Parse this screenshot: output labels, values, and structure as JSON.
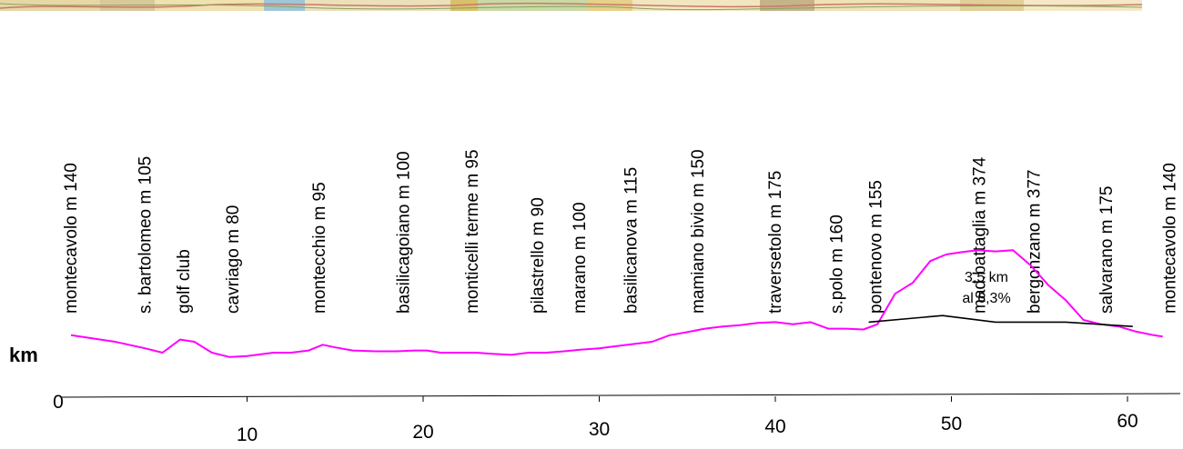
{
  "chart_data": {
    "type": "line",
    "ylabel": "km",
    "xlim": [
      -0.5,
      64
    ],
    "ylim": [
      0,
      400
    ],
    "x_ticks": [
      10,
      20,
      30,
      40,
      50,
      60
    ],
    "y_tick_labels": [
      "0"
    ],
    "colors": {
      "profile": "#ff00ff",
      "segment": "#000000"
    },
    "series": [
      {
        "color": "#ff00ff",
        "x": [
          0,
          2.5,
          4.2,
          5.2,
          6.2,
          7.0,
          8.0,
          9.0,
          10.0,
          11.5,
          12.5,
          13.5,
          14.3,
          15.0,
          16.0,
          17.3,
          18.5,
          19.5,
          20.2,
          21.0,
          22.0,
          23.0,
          24.0,
          25.0,
          26.0,
          27.0,
          28.0,
          29.0,
          30.0,
          31.0,
          32.0,
          33.0,
          34.0,
          35.0,
          36.0,
          37.0,
          38.0,
          39.0,
          40.0,
          41.0,
          42.0,
          43.0,
          44.0,
          45.0,
          45.8,
          46.8,
          47.8,
          48.8,
          49.7,
          50.5,
          51.5,
          52.5,
          53.5,
          54.5,
          55.5,
          56.5,
          57.5,
          58.5,
          59.5,
          60.5,
          61.5,
          62.0
        ],
        "y": [
          140,
          125,
          110,
          100,
          130,
          125,
          100,
          90,
          92,
          100,
          100,
          105,
          118,
          112,
          105,
          103,
          103,
          105,
          105,
          100,
          100,
          100,
          97,
          95,
          100,
          100,
          103,
          107,
          110,
          115,
          120,
          125,
          140,
          147,
          155,
          160,
          163,
          168,
          170,
          165,
          170,
          155,
          155,
          153,
          165,
          235,
          260,
          310,
          325,
          330,
          335,
          332,
          335,
          300,
          255,
          220,
          175,
          165,
          160,
          148,
          140,
          137
        ]
      },
      {
        "color": "#000000",
        "x": [
          45.3,
          49.5,
          52.5,
          56.5,
          60.3
        ],
        "y": [
          170,
          185,
          170,
          170,
          160
        ]
      }
    ],
    "places": [
      {
        "label": "montecavolo m 140",
        "km": 0
      },
      {
        "label": "s. bartolomeo m 105",
        "km": 4.2
      },
      {
        "label": "golf club",
        "km": 6.4
      },
      {
        "label": "cavriago m 80",
        "km": 9.2
      },
      {
        "label": "montecchio m 95",
        "km": 14.1
      },
      {
        "label": "basilicagoiano m 100",
        "km": 18.9
      },
      {
        "label": "monticelli terme m 95",
        "km": 22.8
      },
      {
        "label": "pilastrello m 90",
        "km": 26.5
      },
      {
        "label": "marano m 100",
        "km": 28.9
      },
      {
        "label": "basilicanova m 115",
        "km": 31.8
      },
      {
        "label": "mamiano bivio m 150",
        "km": 35.6
      },
      {
        "label": "traversetolo m 175",
        "km": 40.0
      },
      {
        "label": "s.polo m 160",
        "km": 43.5
      },
      {
        "label": "pontenovo m 155",
        "km": 45.7
      },
      {
        "label": "mad.battaglia m 374",
        "km": 51.6
      },
      {
        "label": "bergonzano m 377",
        "km": 54.7
      },
      {
        "label": "salvarano m 175",
        "km": 58.8
      },
      {
        "label": "montecavolo m 140",
        "km": 62.4
      }
    ],
    "annotations": [
      "3,5 km",
      "al 6,3%"
    ]
  }
}
